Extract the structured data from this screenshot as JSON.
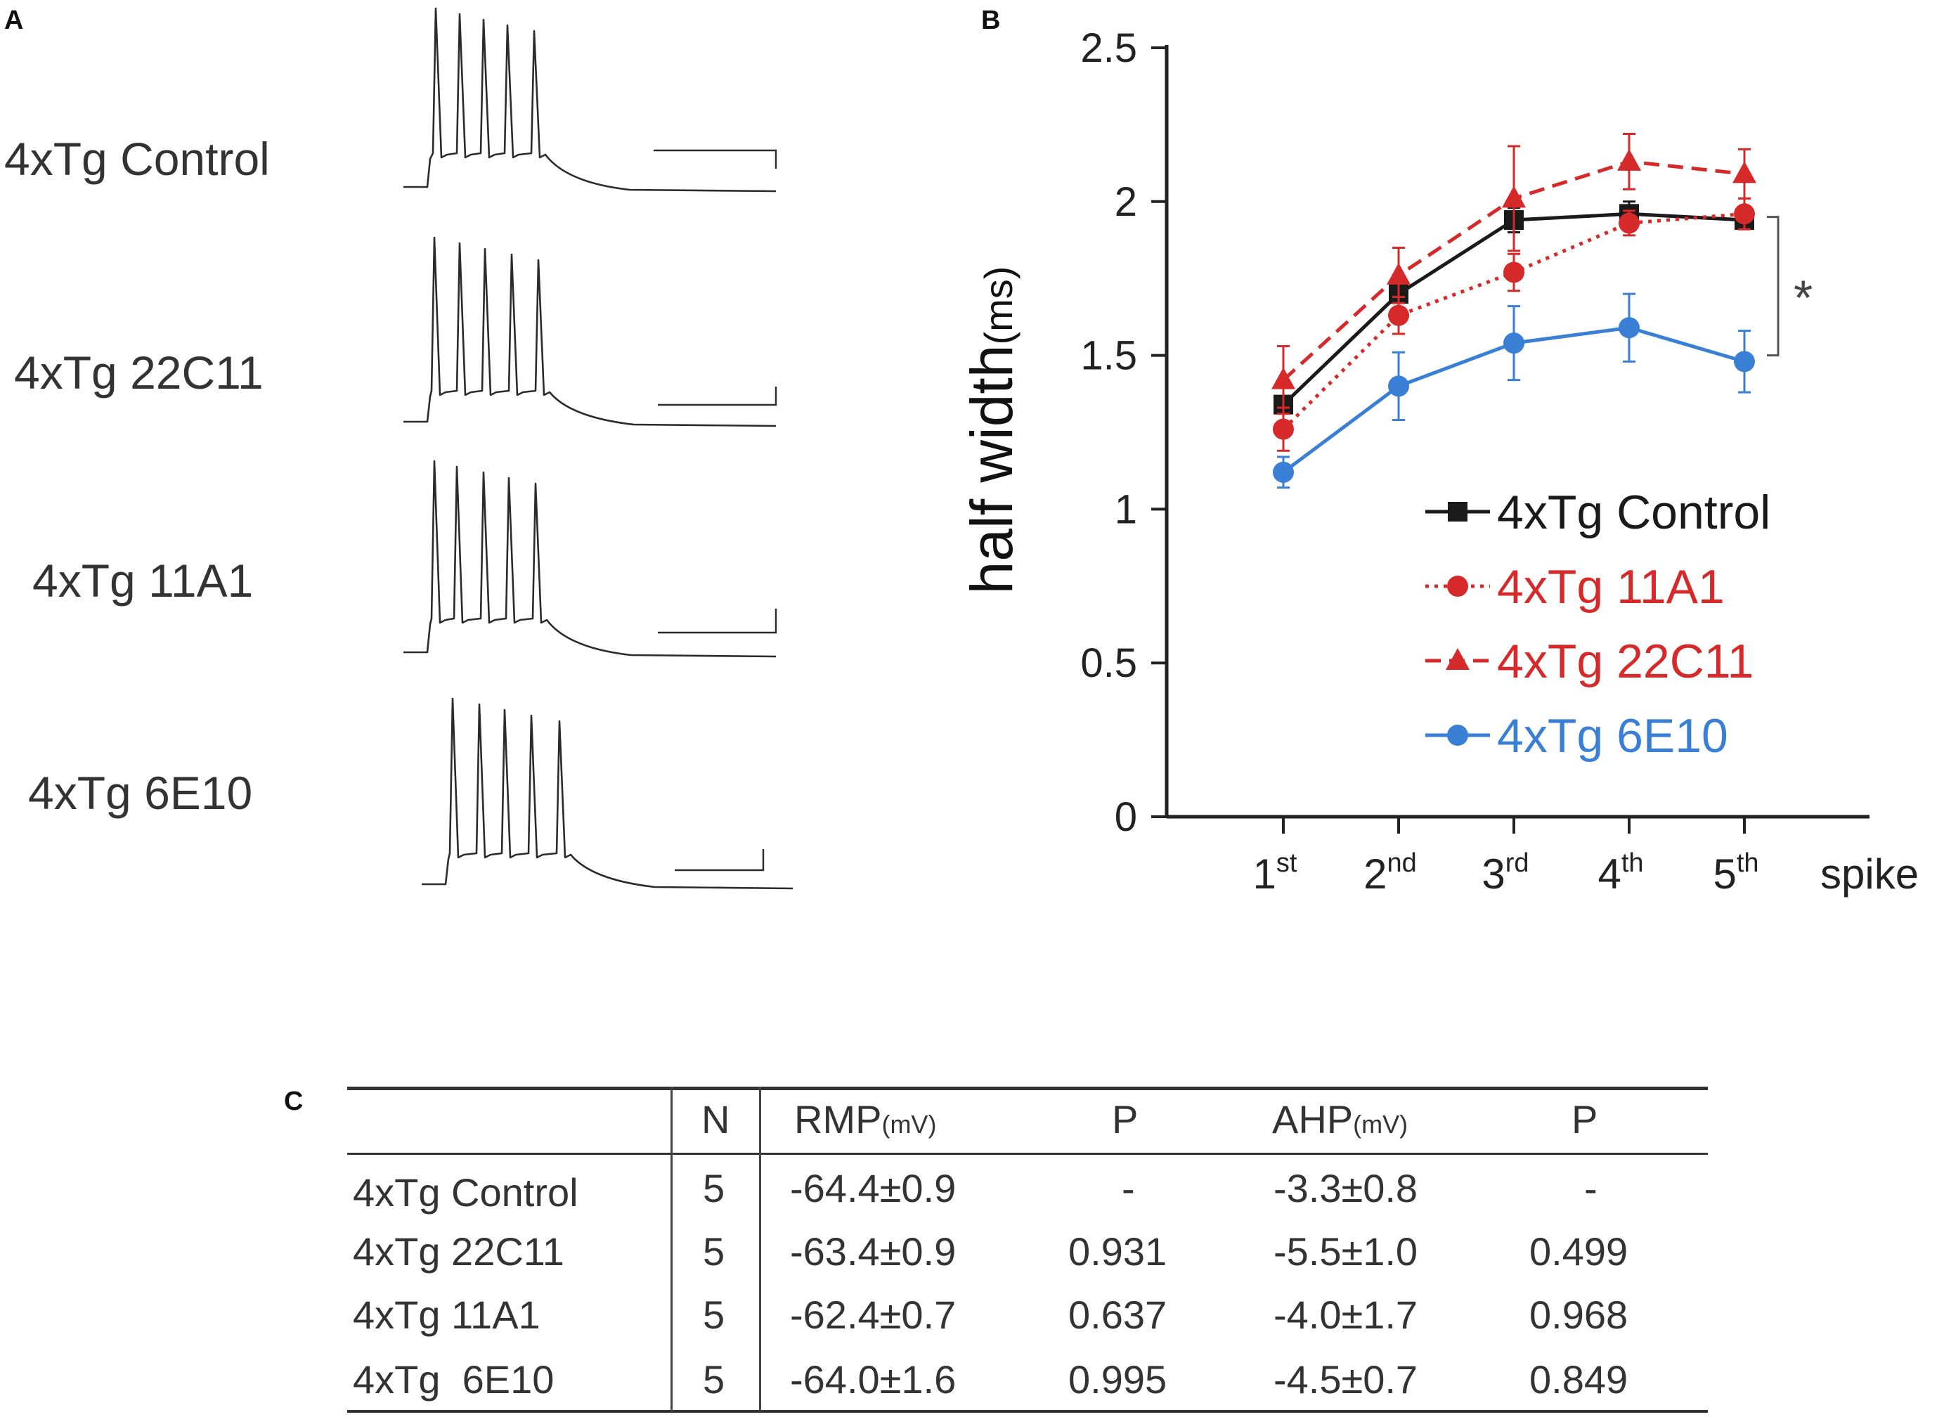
{
  "panel_labels": {
    "a": "A",
    "b": "B",
    "c": "C"
  },
  "panel_a": {
    "traces": [
      {
        "label": "4xTg Control"
      },
      {
        "label": "4xTg 22C11"
      },
      {
        "label": "4xTg 11A1"
      },
      {
        "label": "4xTg 6E10"
      }
    ],
    "colors": {
      "trace": "#2b2b2b"
    }
  },
  "chart_data": {
    "type": "line",
    "categories": [
      "1st",
      "2nd",
      "3rd",
      "4th",
      "5th"
    ],
    "category_parts": [
      {
        "num": "1",
        "sup": "st"
      },
      {
        "num": "2",
        "sup": "nd"
      },
      {
        "num": "3",
        "sup": "rd"
      },
      {
        "num": "4",
        "sup": "th"
      },
      {
        "num": "5",
        "sup": "th"
      }
    ],
    "xlabel": "spike",
    "ylabel": "half width",
    "ylabel_unit": "(ms)",
    "ylim": [
      0,
      2.5
    ],
    "yticks": [
      "0",
      "0.5",
      "1",
      "1.5",
      "2",
      "2.5"
    ],
    "ytick_values": [
      0,
      0.5,
      1,
      1.5,
      2,
      2.5
    ],
    "series": [
      {
        "name": "4xTg Control",
        "color": "#1a1a1a",
        "marker": "square",
        "dash": "solid",
        "values": [
          1.34,
          1.7,
          1.94,
          1.96,
          1.94
        ],
        "errors": [
          0.06,
          0.05,
          0.04,
          0.04,
          0.03
        ]
      },
      {
        "name": "4xTg 11A1",
        "color": "#d62a2a",
        "marker": "circle",
        "dash": "dotted",
        "values": [
          1.26,
          1.63,
          1.77,
          1.93,
          1.96
        ],
        "errors": [
          0.07,
          0.06,
          0.06,
          0.04,
          0.05
        ]
      },
      {
        "name": "4xTg 22C11",
        "color": "#d62a2a",
        "marker": "triangle",
        "dash": "dashed",
        "values": [
          1.42,
          1.76,
          2.01,
          2.13,
          2.09
        ],
        "errors": [
          0.11,
          0.09,
          0.17,
          0.09,
          0.08
        ]
      },
      {
        "name": "4xTg 6E10",
        "color": "#3a7fd6",
        "marker": "circle",
        "dash": "solid",
        "values": [
          1.12,
          1.4,
          1.54,
          1.59,
          1.48
        ],
        "errors": [
          0.05,
          0.11,
          0.12,
          0.11,
          0.1
        ]
      }
    ],
    "significance": "*",
    "legend_position": "inside-right"
  },
  "table": {
    "headers": [
      {
        "main": "",
        "unit": ""
      },
      {
        "main": "N",
        "unit": ""
      },
      {
        "main": "RMP",
        "unit": "(mV)"
      },
      {
        "main": "P",
        "unit": ""
      },
      {
        "main": "AHP",
        "unit": "(mV)"
      },
      {
        "main": "P",
        "unit": ""
      }
    ],
    "rows": [
      [
        "4xTg Control",
        "5",
        "-64.4±0.9",
        "-",
        "-3.3±0.8",
        "-"
      ],
      [
        "4xTg 22C11",
        "5",
        "-63.4±0.9",
        "0.931",
        "-5.5±1.0",
        "0.499"
      ],
      [
        "4xTg 11A1",
        "5",
        "-62.4±0.7",
        "0.637",
        "-4.0±1.7",
        "0.968"
      ],
      [
        "4xTg  6E10",
        "5",
        "-64.0±1.6",
        "0.995",
        "-4.5±0.7",
        "0.849"
      ]
    ]
  }
}
